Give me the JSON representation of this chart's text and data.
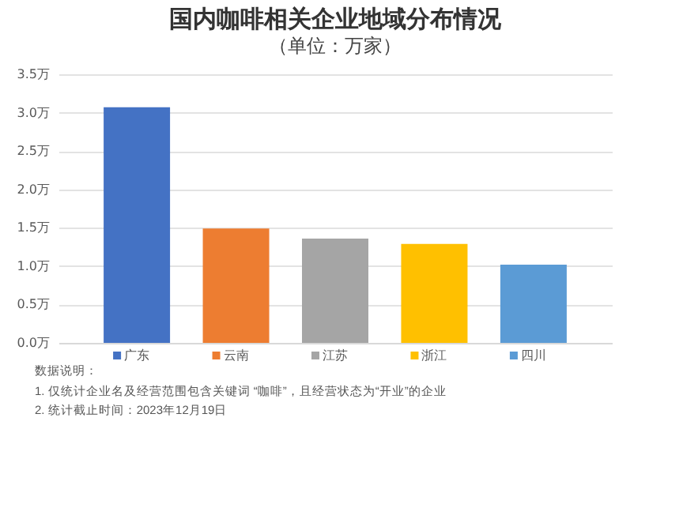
{
  "chart_data": {
    "type": "bar",
    "title": "国内咖啡相关企业地域分布情况",
    "subtitle": "（单位：万家）",
    "categories": [
      "广东",
      "云南",
      "江苏",
      "浙江",
      "四川"
    ],
    "values": [
      3.07,
      1.49,
      1.36,
      1.29,
      1.02
    ],
    "colors": [
      "#4472c4",
      "#ed7d31",
      "#a5a5a5",
      "#ffc000",
      "#5b9bd5"
    ],
    "ylim": [
      0,
      3.5
    ],
    "yticks": [
      {
        "value": 0,
        "label": "0.0万"
      },
      {
        "value": 0.5,
        "label": "0.5万"
      },
      {
        "value": 1,
        "label": "1.0万"
      },
      {
        "value": 1.5,
        "label": "1.5万"
      },
      {
        "value": 2,
        "label": "2.0万"
      },
      {
        "value": 2.5,
        "label": "2.5万"
      },
      {
        "value": 3,
        "label": "3.0万"
      },
      {
        "value": 3.5,
        "label": "3.5万"
      }
    ],
    "grid": "y",
    "annotations": [
      "数据说明：",
      "1. 仅统计企业名及经营范围包含关键词 “咖啡”，且经营状态为“开业”的企业",
      "2. 统计截止时间：2023年12月19日"
    ]
  }
}
